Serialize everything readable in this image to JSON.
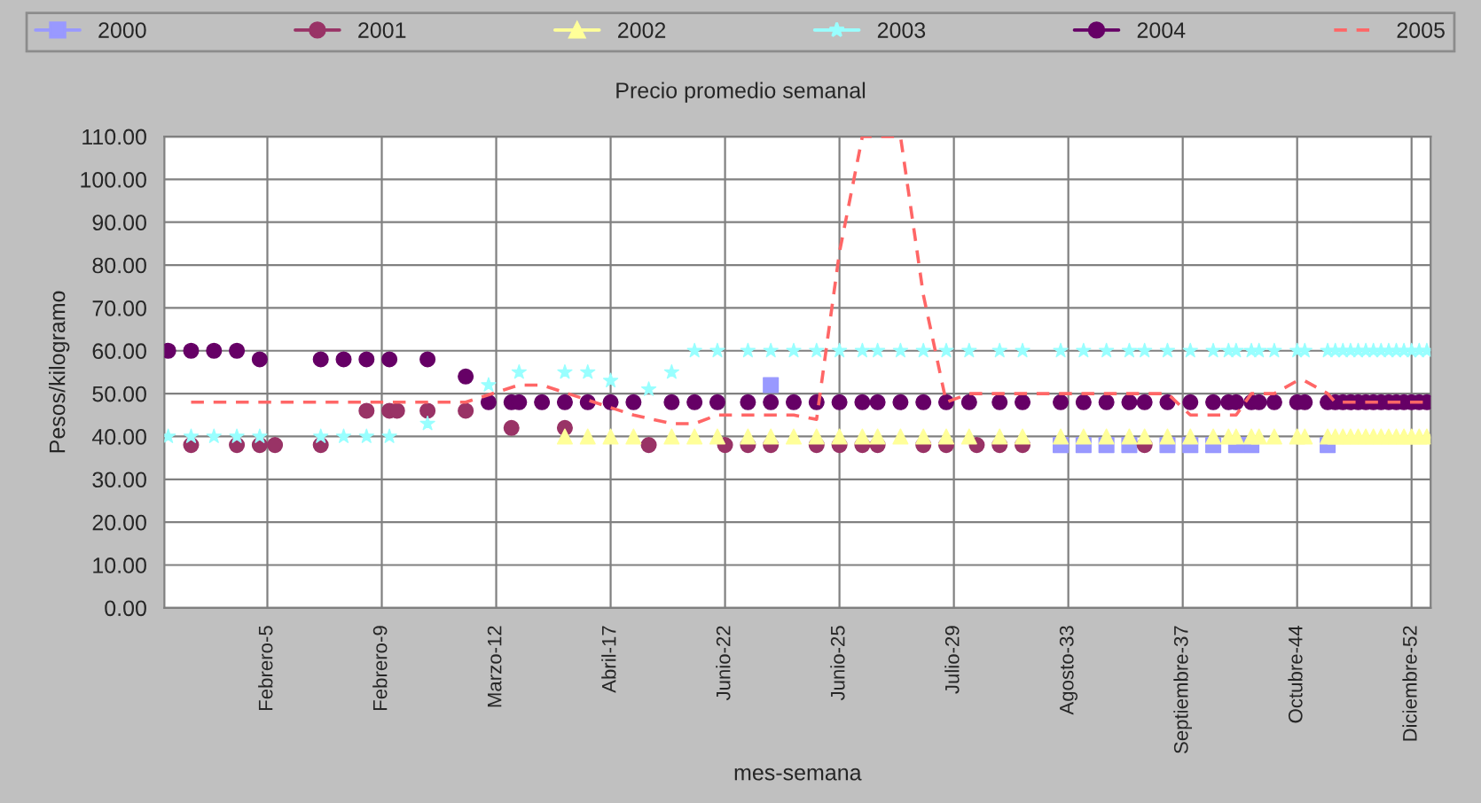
{
  "chart_data": {
    "type": "scatter",
    "title": "Precio promedio semanal",
    "xlabel": "mes-semana",
    "ylabel": "Pesos/kilogramo",
    "categories": [
      null,
      null,
      null,
      null,
      null,
      null,
      null,
      null,
      null,
      null,
      null,
      null,
      null,
      "Febrero-5",
      null,
      null,
      null,
      null,
      null,
      null,
      null,
      null,
      null,
      null,
      null,
      null,
      null,
      null,
      "Febrero-9",
      null,
      null,
      null,
      null,
      null,
      null,
      null,
      null,
      null,
      null,
      null,
      null,
      null,
      null,
      "Marzo-12",
      null,
      null,
      null,
      null,
      null,
      null,
      null,
      null,
      null,
      null,
      null,
      null,
      null,
      null,
      "Abril-17",
      null,
      null,
      null,
      null,
      null,
      null,
      null,
      null,
      null,
      null,
      null,
      null,
      null,
      null,
      "Junio-22",
      null,
      null,
      null,
      null,
      null,
      null,
      null,
      null,
      null,
      null,
      null,
      null,
      null,
      null,
      "Junio-25",
      null,
      null,
      null,
      null,
      null,
      null,
      null,
      null,
      null,
      null,
      null,
      null,
      null,
      null,
      "Julio-29",
      null,
      null,
      null,
      null,
      null,
      null,
      null,
      null,
      null,
      null,
      null,
      null,
      null,
      null,
      "Agosto-33",
      null,
      null,
      null,
      null,
      null,
      null,
      null,
      null,
      null,
      null,
      null,
      null,
      null,
      null,
      "Septiembre-37",
      null,
      null,
      null,
      null,
      null,
      null,
      null,
      null,
      null,
      null,
      null,
      null,
      null,
      null,
      "Octubre-44",
      null,
      null,
      null,
      null,
      null,
      null,
      null,
      null,
      null,
      null,
      null,
      null,
      null,
      null,
      "Diciembre-52",
      null,
      null
    ],
    "ylim": [
      0,
      110
    ],
    "yticks": [
      {
        "value": 0,
        "label": "0.00"
      },
      {
        "value": 10,
        "label": "10.00"
      },
      {
        "value": 20,
        "label": "20.00"
      },
      {
        "value": 30,
        "label": "30.00"
      },
      {
        "value": 40,
        "label": "40.00"
      },
      {
        "value": 50,
        "label": "50.00"
      },
      {
        "value": 60,
        "label": "60.00"
      },
      {
        "value": 70,
        "label": "70.00"
      },
      {
        "value": 80,
        "label": "80.00"
      },
      {
        "value": 90,
        "label": "90.00"
      },
      {
        "value": 100,
        "label": "100.00"
      },
      {
        "value": 110,
        "label": "110.00"
      }
    ],
    "grid": true,
    "legend": "top",
    "series": [
      {
        "name": "2000",
        "color": "#9999ff",
        "marker": "square",
        "values": [
          null,
          null,
          null,
          null,
          null,
          null,
          null,
          null,
          null,
          null,
          null,
          null,
          null,
          null,
          null,
          null,
          null,
          null,
          null,
          null,
          null,
          null,
          null,
          null,
          null,
          null,
          null,
          null,
          null,
          null,
          null,
          null,
          null,
          null,
          null,
          null,
          null,
          null,
          null,
          null,
          null,
          null,
          null,
          null,
          null,
          null,
          null,
          null,
          null,
          null,
          null,
          null,
          null,
          null,
          null,
          null,
          null,
          null,
          null,
          null,
          null,
          null,
          null,
          null,
          null,
          null,
          null,
          null,
          null,
          null,
          null,
          null,
          null,
          null,
          null,
          null,
          null,
          null,
          null,
          52,
          null,
          null,
          null,
          null,
          null,
          null,
          null,
          null,
          null,
          null,
          null,
          null,
          null,
          null,
          null,
          null,
          null,
          null,
          null,
          null,
          null,
          null,
          null,
          null,
          null,
          null,
          null,
          null,
          null,
          null,
          null,
          null,
          null,
          null,
          null,
          null,
          null,
          38,
          null,
          null,
          38,
          null,
          null,
          38,
          null,
          null,
          38,
          null,
          null,
          null,
          null,
          38,
          null,
          null,
          38,
          null,
          null,
          38,
          null,
          null,
          38,
          null,
          38,
          null,
          null,
          null,
          null,
          null,
          null,
          null,
          null,
          null,
          38,
          null,
          null,
          null,
          null,
          null,
          null,
          null,
          null,
          null,
          null,
          null,
          null,
          null
        ]
      },
      {
        "name": "2001",
        "color": "#993366",
        "marker": "circle",
        "values": [
          null,
          null,
          null,
          38,
          null,
          null,
          null,
          null,
          null,
          38,
          null,
          null,
          38,
          null,
          38,
          null,
          null,
          null,
          null,
          null,
          38,
          null,
          null,
          null,
          null,
          null,
          46,
          null,
          null,
          46,
          46,
          null,
          null,
          null,
          46,
          null,
          null,
          null,
          null,
          46,
          null,
          null,
          null,
          null,
          null,
          42,
          null,
          null,
          null,
          null,
          null,
          null,
          42,
          null,
          null,
          null,
          null,
          null,
          null,
          null,
          null,
          null,
          null,
          38,
          null,
          null,
          null,
          null,
          null,
          null,
          null,
          null,
          null,
          38,
          null,
          null,
          38,
          null,
          null,
          38,
          null,
          null,
          null,
          null,
          null,
          38,
          null,
          null,
          38,
          null,
          null,
          38,
          null,
          38,
          null,
          null,
          null,
          null,
          null,
          38,
          null,
          null,
          38,
          null,
          null,
          null,
          38,
          null,
          null,
          38,
          null,
          null,
          38,
          null,
          null,
          null,
          null,
          null,
          null,
          null,
          null,
          null,
          null,
          null,
          null,
          null,
          null,
          null,
          38,
          null,
          null,
          null,
          null,
          null,
          null,
          null,
          null,
          null,
          null,
          null,
          null,
          null,
          null,
          null,
          null,
          null,
          null,
          null,
          null,
          null,
          null,
          null,
          null,
          null,
          null,
          null,
          null,
          null,
          null,
          null,
          null,
          null,
          null,
          null,
          null,
          null
        ]
      },
      {
        "name": "2002",
        "color": "#ffff99",
        "marker": "triangle",
        "values": [
          null,
          null,
          null,
          null,
          null,
          null,
          null,
          null,
          null,
          null,
          null,
          null,
          null,
          null,
          null,
          null,
          null,
          null,
          null,
          null,
          null,
          null,
          null,
          null,
          null,
          null,
          null,
          null,
          null,
          null,
          null,
          null,
          null,
          null,
          null,
          null,
          null,
          null,
          null,
          null,
          null,
          null,
          null,
          null,
          null,
          null,
          null,
          null,
          null,
          null,
          null,
          null,
          40,
          null,
          null,
          40,
          null,
          null,
          40,
          null,
          null,
          40,
          null,
          null,
          null,
          null,
          40,
          null,
          null,
          40,
          null,
          null,
          40,
          null,
          null,
          null,
          40,
          null,
          null,
          40,
          null,
          null,
          40,
          null,
          null,
          40,
          null,
          null,
          40,
          null,
          null,
          40,
          null,
          40,
          null,
          null,
          40,
          null,
          null,
          40,
          null,
          null,
          40,
          null,
          null,
          40,
          null,
          null,
          null,
          40,
          null,
          null,
          40,
          null,
          null,
          null,
          null,
          40,
          null,
          null,
          40,
          null,
          null,
          40,
          null,
          null,
          40,
          null,
          40,
          null,
          null,
          40,
          null,
          null,
          40,
          null,
          null,
          40,
          null,
          40,
          40,
          null,
          40,
          40,
          null,
          40,
          null,
          null,
          40,
          40,
          null,
          null,
          40,
          40,
          40,
          40,
          40,
          40,
          40,
          40,
          40,
          40,
          40,
          40,
          40,
          40
        ]
      },
      {
        "name": "2003",
        "color": "#99ffff",
        "marker": "star",
        "values": [
          40,
          null,
          null,
          40,
          null,
          null,
          40,
          null,
          null,
          40,
          null,
          null,
          40,
          null,
          null,
          null,
          null,
          null,
          null,
          null,
          40,
          null,
          null,
          40,
          null,
          null,
          40,
          null,
          null,
          40,
          null,
          null,
          null,
          null,
          43,
          null,
          null,
          null,
          null,
          null,
          null,
          null,
          52,
          null,
          null,
          null,
          55,
          null,
          null,
          null,
          null,
          null,
          55,
          null,
          null,
          55,
          null,
          null,
          53,
          null,
          null,
          null,
          null,
          51,
          null,
          null,
          55,
          null,
          null,
          60,
          null,
          null,
          60,
          null,
          null,
          null,
          60,
          null,
          null,
          60,
          null,
          null,
          60,
          null,
          null,
          60,
          null,
          null,
          60,
          null,
          null,
          60,
          null,
          60,
          null,
          null,
          60,
          null,
          null,
          60,
          null,
          null,
          60,
          null,
          null,
          60,
          null,
          null,
          null,
          60,
          null,
          null,
          60,
          null,
          null,
          null,
          null,
          60,
          null,
          null,
          60,
          null,
          null,
          60,
          null,
          null,
          60,
          null,
          60,
          null,
          null,
          60,
          null,
          null,
          60,
          null,
          null,
          60,
          null,
          60,
          60,
          null,
          60,
          60,
          null,
          60,
          null,
          null,
          60,
          60,
          null,
          null,
          60,
          60,
          60,
          60,
          60,
          60,
          60,
          60,
          60,
          60,
          60,
          60,
          60,
          60
        ]
      },
      {
        "name": "2004",
        "color": "#660066",
        "marker": "circle",
        "values": [
          60,
          null,
          null,
          60,
          null,
          null,
          60,
          null,
          null,
          60,
          null,
          null,
          58,
          null,
          null,
          null,
          null,
          null,
          null,
          null,
          58,
          null,
          null,
          58,
          null,
          null,
          58,
          null,
          null,
          58,
          null,
          null,
          null,
          null,
          58,
          null,
          null,
          null,
          null,
          54,
          null,
          null,
          48,
          null,
          null,
          48,
          48,
          null,
          null,
          48,
          null,
          null,
          48,
          null,
          null,
          48,
          null,
          null,
          48,
          null,
          null,
          48,
          null,
          null,
          null,
          null,
          48,
          null,
          null,
          48,
          null,
          null,
          48,
          null,
          null,
          null,
          48,
          null,
          null,
          48,
          null,
          null,
          48,
          null,
          null,
          48,
          null,
          null,
          48,
          null,
          null,
          48,
          null,
          48,
          null,
          null,
          48,
          null,
          null,
          48,
          null,
          null,
          48,
          null,
          null,
          48,
          null,
          null,
          null,
          48,
          null,
          null,
          48,
          null,
          null,
          null,
          null,
          48,
          null,
          null,
          48,
          null,
          null,
          48,
          null,
          null,
          48,
          null,
          48,
          null,
          null,
          48,
          null,
          null,
          48,
          null,
          null,
          48,
          null,
          48,
          48,
          null,
          48,
          48,
          null,
          48,
          null,
          null,
          48,
          48,
          null,
          null,
          48,
          48,
          48,
          48,
          48,
          48,
          48,
          48,
          48,
          48,
          48,
          48,
          48,
          48
        ]
      },
      {
        "name": "2005",
        "color": "#ff6666",
        "type": "line",
        "line_style": "dashed",
        "marker": "none",
        "values": [
          null,
          null,
          null,
          48,
          null,
          null,
          48,
          null,
          null,
          48,
          null,
          null,
          48,
          null,
          null,
          null,
          null,
          48,
          null,
          null,
          48,
          null,
          null,
          48,
          null,
          null,
          48,
          null,
          null,
          48,
          null,
          null,
          48,
          null,
          48,
          null,
          null,
          null,
          null,
          48,
          null,
          null,
          null,
          null,
          null,
          null,
          52,
          null,
          null,
          52,
          null,
          null,
          null,
          null,
          null,
          null,
          null,
          null,
          null,
          null,
          null,
          45,
          null,
          null,
          null,
          null,
          43,
          null,
          null,
          43,
          null,
          null,
          45,
          null,
          null,
          null,
          45,
          null,
          null,
          45,
          null,
          null,
          45,
          null,
          null,
          44,
          null,
          null,
          83,
          null,
          null,
          110,
          null,
          110,
          null,
          null,
          110,
          null,
          null,
          73,
          null,
          null,
          48,
          null,
          null,
          50,
          null,
          null,
          null,
          null,
          null,
          null,
          50,
          null,
          null,
          null,
          null,
          50,
          null,
          null,
          50,
          null,
          null,
          50,
          null,
          null,
          50,
          null,
          50,
          null,
          null,
          50,
          null,
          null,
          45,
          null,
          null,
          45,
          null,
          null,
          45,
          null,
          50,
          50,
          null,
          50,
          null,
          null,
          53,
          53,
          null,
          null,
          50,
          48,
          48,
          48,
          48,
          48,
          48,
          48,
          48,
          48,
          48,
          48,
          48,
          48
        ]
      }
    ]
  }
}
